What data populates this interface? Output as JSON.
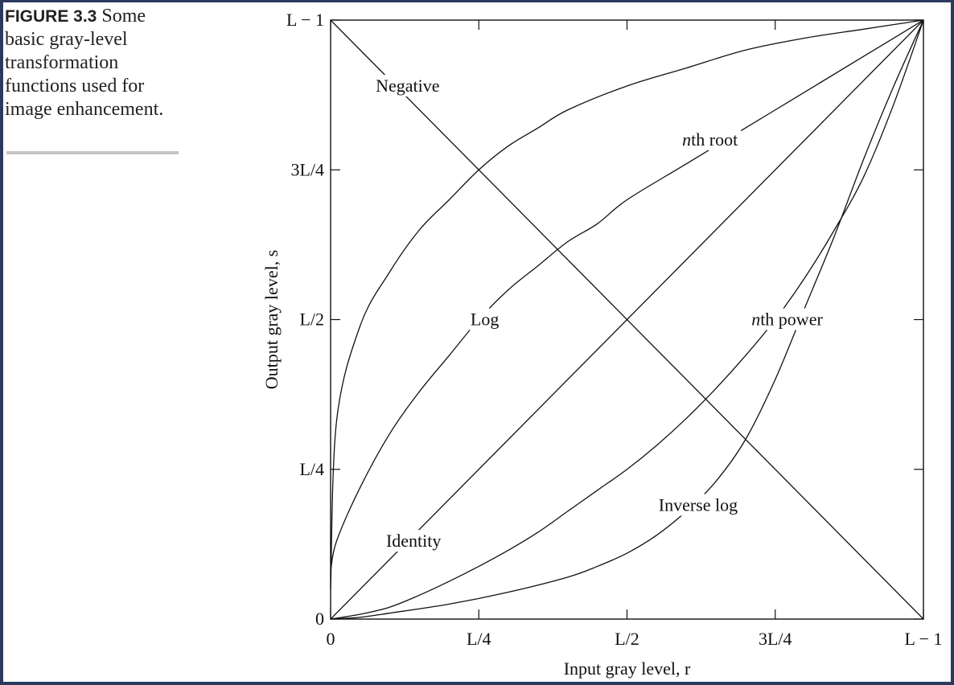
{
  "caption": {
    "label": "FIGURE 3.3",
    "text": "Some basic gray-level transformation functions used for image enhancement."
  },
  "chart_data": {
    "type": "line",
    "title": "",
    "xlabel": "Input gray level, r",
    "ylabel": "Output gray level, s",
    "xlim": [
      0,
      1
    ],
    "ylim": [
      0,
      1
    ],
    "x_ticks": [
      {
        "value": 0,
        "label": "0"
      },
      {
        "value": 0.25,
        "label": "L/4"
      },
      {
        "value": 0.5,
        "label": "L/2"
      },
      {
        "value": 0.75,
        "label": "3L/4"
      },
      {
        "value": 1,
        "label": "L − 1"
      }
    ],
    "y_ticks": [
      {
        "value": 0,
        "label": "0"
      },
      {
        "value": 0.25,
        "label": "L/4"
      },
      {
        "value": 0.5,
        "label": "L/2"
      },
      {
        "value": 0.75,
        "label": "3L/4"
      },
      {
        "value": 1,
        "label": "L − 1"
      }
    ],
    "grid": false,
    "legend": "none",
    "series": [
      {
        "name": "Negative",
        "x": [
          0,
          1
        ],
        "y": [
          1,
          0
        ]
      },
      {
        "name": "Identity",
        "x": [
          0,
          1
        ],
        "y": [
          0,
          1
        ]
      },
      {
        "name": "Log",
        "x": [
          0,
          0.01,
          0.05,
          0.1,
          0.15,
          0.2,
          0.25,
          0.3,
          0.35,
          0.4,
          0.5,
          0.6,
          0.7,
          0.8,
          0.9,
          1
        ],
        "y": [
          0.05,
          0.33,
          0.49,
          0.58,
          0.65,
          0.7,
          0.75,
          0.79,
          0.82,
          0.85,
          0.89,
          0.92,
          0.95,
          0.97,
          0.985,
          1
        ]
      },
      {
        "name": "nth root",
        "x": [
          0,
          0.01,
          0.05,
          0.1,
          0.15,
          0.2,
          0.25,
          0.3,
          0.35,
          0.4,
          0.45,
          0.5,
          0.6,
          0.7,
          0.8,
          0.9,
          1
        ],
        "y": [
          0.08,
          0.13,
          0.22,
          0.31,
          0.38,
          0.44,
          0.5,
          0.55,
          0.59,
          0.63,
          0.66,
          0.7,
          0.76,
          0.82,
          0.88,
          0.94,
          1
        ]
      },
      {
        "name": "nth power",
        "x": [
          0,
          0.05,
          0.1,
          0.15,
          0.2,
          0.25,
          0.3,
          0.35,
          0.4,
          0.45,
          0.5,
          0.55,
          0.6,
          0.65,
          0.7,
          0.75,
          0.8,
          0.85,
          0.9,
          0.95,
          1
        ],
        "y": [
          0,
          0.008,
          0.02,
          0.04,
          0.063,
          0.088,
          0.115,
          0.145,
          0.18,
          0.215,
          0.25,
          0.29,
          0.335,
          0.385,
          0.44,
          0.5,
          0.57,
          0.65,
          0.74,
          0.86,
          1
        ]
      },
      {
        "name": "Inverse log",
        "x": [
          0,
          0.05,
          0.1,
          0.2,
          0.3,
          0.4,
          0.45,
          0.5,
          0.55,
          0.6,
          0.65,
          0.7,
          0.75,
          0.8,
          0.85,
          0.9,
          0.95,
          1
        ],
        "y": [
          0,
          0.003,
          0.01,
          0.025,
          0.045,
          0.07,
          0.088,
          0.11,
          0.14,
          0.18,
          0.23,
          0.3,
          0.4,
          0.52,
          0.64,
          0.77,
          0.89,
          1
        ]
      }
    ],
    "annotations": [
      {
        "text": "Negative",
        "x": 0.13,
        "y": 0.89,
        "series": "Negative"
      },
      {
        "text": "Log",
        "x": 0.26,
        "y": 0.5,
        "series": "Log"
      },
      {
        "text": "nth root",
        "x": 0.64,
        "y": 0.8,
        "series": "nth root"
      },
      {
        "text": "nth power",
        "x": 0.77,
        "y": 0.5,
        "series": "nth power"
      },
      {
        "text": "Identity",
        "x": 0.14,
        "y": 0.13,
        "series": "Identity"
      },
      {
        "text": "Inverse log",
        "x": 0.62,
        "y": 0.19,
        "series": "Inverse log"
      }
    ]
  }
}
